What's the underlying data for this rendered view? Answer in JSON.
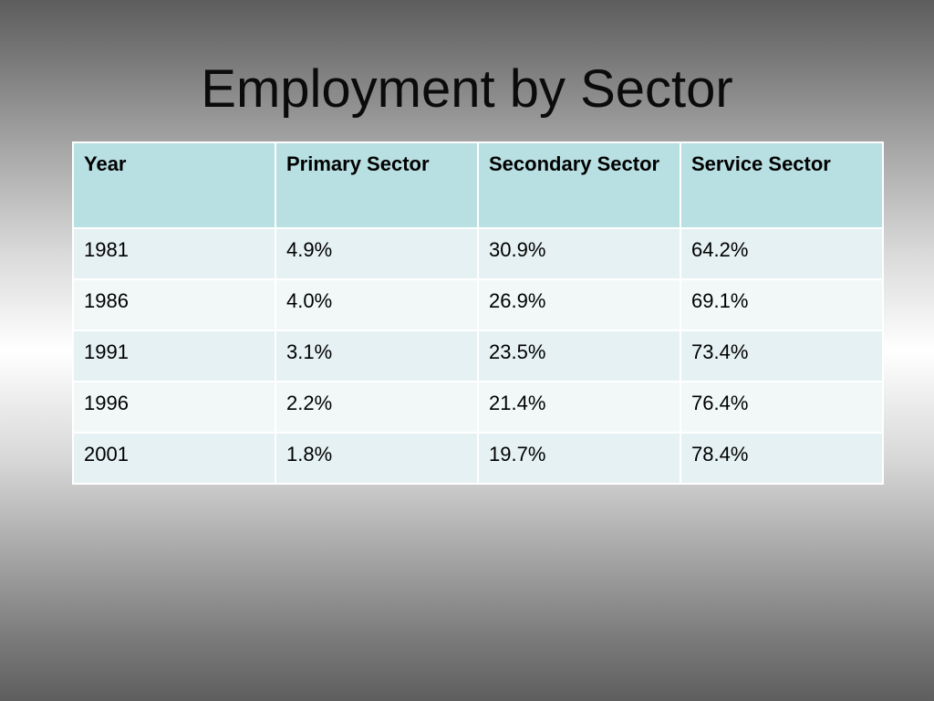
{
  "title": "Employment by Sector",
  "table": {
    "headers": [
      "Year",
      "Primary Sector",
      "Secondary Sector",
      "Service Sector"
    ],
    "rows": [
      [
        "1981",
        "4.9%",
        "30.9%",
        "64.2%"
      ],
      [
        "1986",
        "4.0%",
        "26.9%",
        "69.1%"
      ],
      [
        "1991",
        "3.1%",
        "23.5%",
        "73.4%"
      ],
      [
        "1996",
        "2.2%",
        "21.4%",
        "76.4%"
      ],
      [
        "2001",
        "1.8%",
        "19.7%",
        "78.4%"
      ]
    ]
  },
  "colors": {
    "header_fill": "#b8dfe2",
    "row_fill_odd": "#e5f1f2",
    "row_fill_even": "#f2f8f8",
    "cell_border": "#ffffff",
    "title_text": "#0b0b0b"
  }
}
